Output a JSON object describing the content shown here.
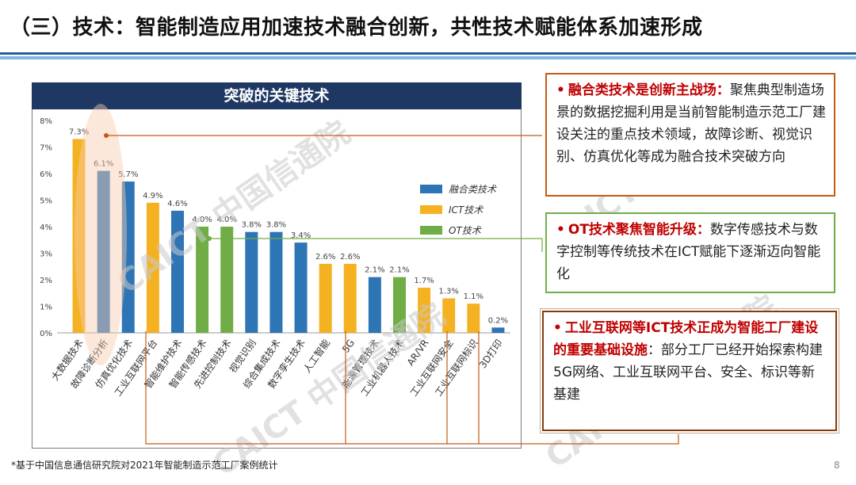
{
  "slide": {
    "title": "（三）技术：智能制造应用加速技术融合创新，共性技术赋能体系加速形成",
    "footnote": "*基于中国信息通信研究院对2021年智能制造示范工厂案例统计",
    "page_number": "8",
    "watermark_text": "CAICT 中国信通院"
  },
  "chart_title": "突破的关键技术",
  "chart_data": {
    "type": "bar",
    "title": "突破的关键技术",
    "categories": [
      "大数据技术",
      "故障诊断分析",
      "仿真优化技术",
      "工业互联网平台",
      "智能维护技术",
      "智能传感技术",
      "先进控制技术",
      "视觉识别",
      "综合集成技术",
      "数字孪生技术",
      "人工智能",
      "5G",
      "能源管理技术",
      "工业机器人技术",
      "AR/VR",
      "工业互联网安全",
      "工业互联网标识",
      "3D打印"
    ],
    "values": [
      7.3,
      6.1,
      5.7,
      4.9,
      4.6,
      4.0,
      4.0,
      3.8,
      3.8,
      3.4,
      2.6,
      2.6,
      2.1,
      2.1,
      1.7,
      1.3,
      1.1,
      0.2
    ],
    "value_labels": [
      "7.3%",
      "6.1%",
      "5.7%",
      "4.9%",
      "4.6%",
      "4.0%",
      "4.0%",
      "3.8%",
      "3.8%",
      "3.4%",
      "2.6%",
      "2.6%",
      "2.1%",
      "2.1%",
      "1.7%",
      "1.3%",
      "1.1%",
      "0.2%"
    ],
    "groups": [
      "ICT",
      "融合",
      "融合",
      "ICT",
      "融合",
      "OT",
      "OT",
      "融合",
      "融合",
      "融合",
      "ICT",
      "ICT",
      "融合",
      "OT",
      "ICT",
      "ICT",
      "ICT",
      "融合"
    ],
    "y_ticks": [
      "0%",
      "1%",
      "2%",
      "3%",
      "4%",
      "5%",
      "6%",
      "7%",
      "8%"
    ],
    "ylim": [
      0,
      8
    ],
    "legend": [
      {
        "key": "融合",
        "label": "融合类技术",
        "color": "#2e75b6"
      },
      {
        "key": "ICT",
        "label": "ICT技术",
        "color": "#f4b223"
      },
      {
        "key": "OT",
        "label": "OT技术",
        "color": "#70ad47"
      }
    ],
    "legend_position": "right",
    "grid": false
  },
  "callouts": {
    "box1": {
      "bullet": "•",
      "highlight": "融合类技术是创新主战场：",
      "text": "聚焦典型制造场景的数据挖掘利用是当前智能制造示范工厂建设关注的重点技术领域，故障诊断、视觉识别、仿真优化等成为融合技术突破方向"
    },
    "box2": {
      "bullet": "•",
      "highlight": "OT技术聚焦智能升级：",
      "text": "数字传感技术与数字控制等传统技术在ICT赋能下逐渐迈向智能化"
    },
    "box3": {
      "bullet": "•",
      "highlight": "工业互联网等ICT技术正成为智能工厂建设的重要基础设施",
      "text": "：部分工厂已经开始探索构建5G网络、工业互联网平台、安全、标识等新基建"
    }
  }
}
